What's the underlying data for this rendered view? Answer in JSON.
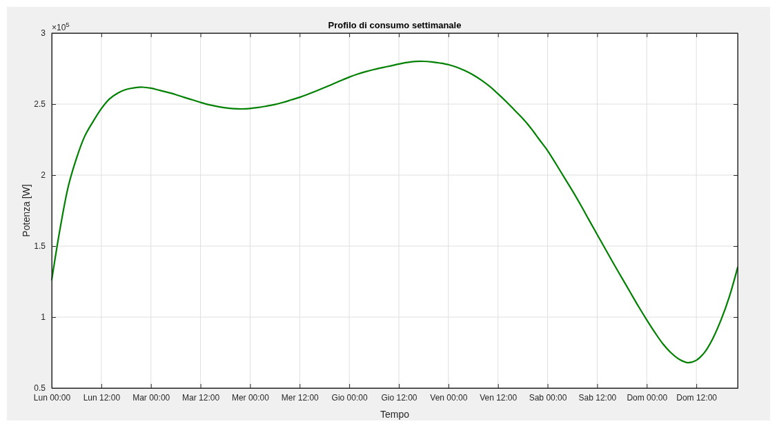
{
  "chart_data": {
    "type": "line",
    "title": "Profilo di consumo settimanale",
    "xlabel": "Tempo",
    "ylabel": "Potenza [W]",
    "annotations": [
      "×10$^{5}$"
    ],
    "categories": [
      "Lun 00:00",
      null,
      null,
      null,
      null,
      null,
      "Lun 12:00",
      null,
      null,
      null,
      null,
      null,
      "Mar 00:00",
      null,
      null,
      null,
      null,
      null,
      "Mar 12:00",
      null,
      null,
      null,
      null,
      null,
      "Mer 00:00",
      null,
      null,
      null,
      null,
      null,
      "Mer 12:00",
      null,
      null,
      null,
      null,
      null,
      "Gio 00:00",
      null,
      null,
      null,
      null,
      null,
      "Gio 12:00",
      null,
      null,
      null,
      null,
      null,
      "Ven 00:00",
      null,
      null,
      null,
      null,
      null,
      "Ven 12:00",
      null,
      null,
      null,
      null,
      null,
      "Sab 00:00",
      null,
      null,
      null,
      null,
      null,
      "Sab 12:00",
      null,
      null,
      null,
      null,
      null,
      "Dom 00:00",
      null,
      null,
      null,
      null,
      null,
      "Dom 12:00",
      null,
      null,
      null,
      null,
      null
    ],
    "series": [
      {
        "color": "#008000",
        "values": [
          1.263,
          1.62,
          1.92,
          2.12,
          2.275,
          2.377,
          2.468,
          2.537,
          2.578,
          2.603,
          2.615,
          2.619,
          2.612,
          2.598,
          2.583,
          2.567,
          2.548,
          2.53,
          2.512,
          2.496,
          2.484,
          2.474,
          2.468,
          2.466,
          2.469,
          2.476,
          2.486,
          2.497,
          2.512,
          2.53,
          2.548,
          2.569,
          2.592,
          2.616,
          2.641,
          2.666,
          2.69,
          2.711,
          2.729,
          2.744,
          2.757,
          2.769,
          2.782,
          2.793,
          2.8,
          2.801,
          2.797,
          2.789,
          2.778,
          2.76,
          2.735,
          2.705,
          2.668,
          2.624,
          2.572,
          2.517,
          2.458,
          2.398,
          2.329,
          2.25,
          2.172,
          2.08,
          1.985,
          1.89,
          1.79,
          1.685,
          1.581,
          1.478,
          1.375,
          1.275,
          1.175,
          1.075,
          0.98,
          0.89,
          0.808,
          0.745,
          0.7,
          0.679,
          0.696,
          0.752,
          0.85,
          0.982,
          1.145,
          1.35
        ]
      }
    ],
    "ylim": [
      0.5,
      3
    ],
    "yticks": [
      0.5,
      1,
      1.5,
      2,
      2.5,
      3
    ],
    "grid": true,
    "line_style": "solid"
  }
}
